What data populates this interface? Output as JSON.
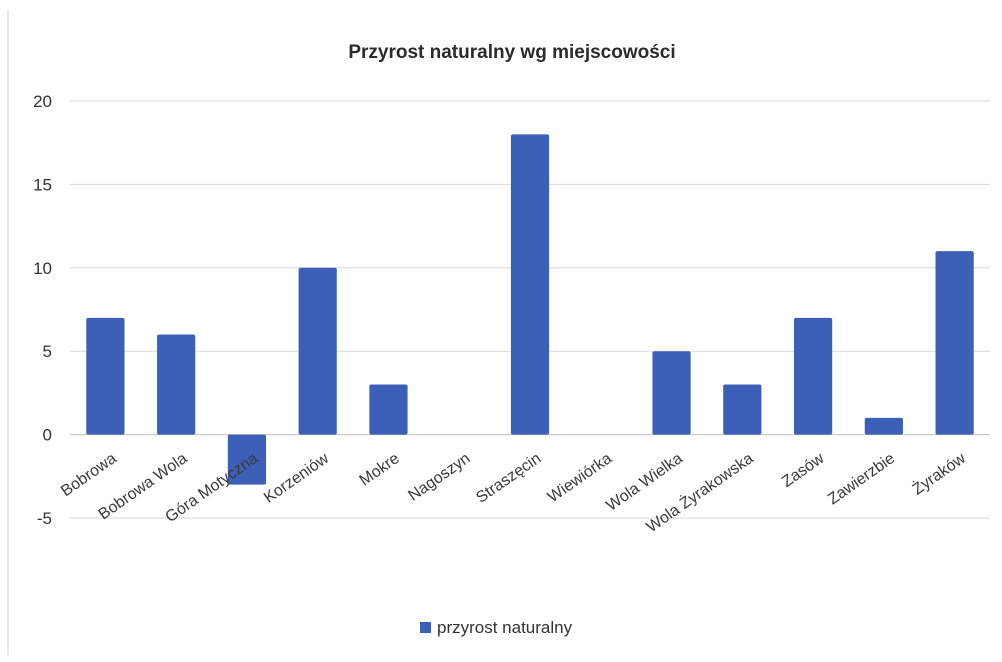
{
  "chart_data": {
    "type": "bar",
    "title": "Przyrost naturalny wg miejscowości",
    "xlabel": "",
    "ylabel": "",
    "ylim": [
      -5,
      20
    ],
    "yticks": [
      -5,
      0,
      5,
      10,
      15,
      20
    ],
    "grid": true,
    "legend_position": "bottom",
    "categories": [
      "Bobrowa",
      "Bobrowa Wola",
      "Góra Motyczna",
      "Korzeniów",
      "Mokre",
      "Nagoszyn",
      "Straszęcin",
      "Wiewiórka",
      "Wola Wielka",
      "Wola Żyrakowska",
      "Zasów",
      "Zawierzbie",
      "Żyraków"
    ],
    "series": [
      {
        "name": "przyrost naturalny",
        "color": "#3c5fb8",
        "values": [
          7,
          6,
          -3,
          10,
          3,
          0,
          18,
          0,
          5,
          3,
          7,
          1,
          11
        ]
      }
    ]
  }
}
